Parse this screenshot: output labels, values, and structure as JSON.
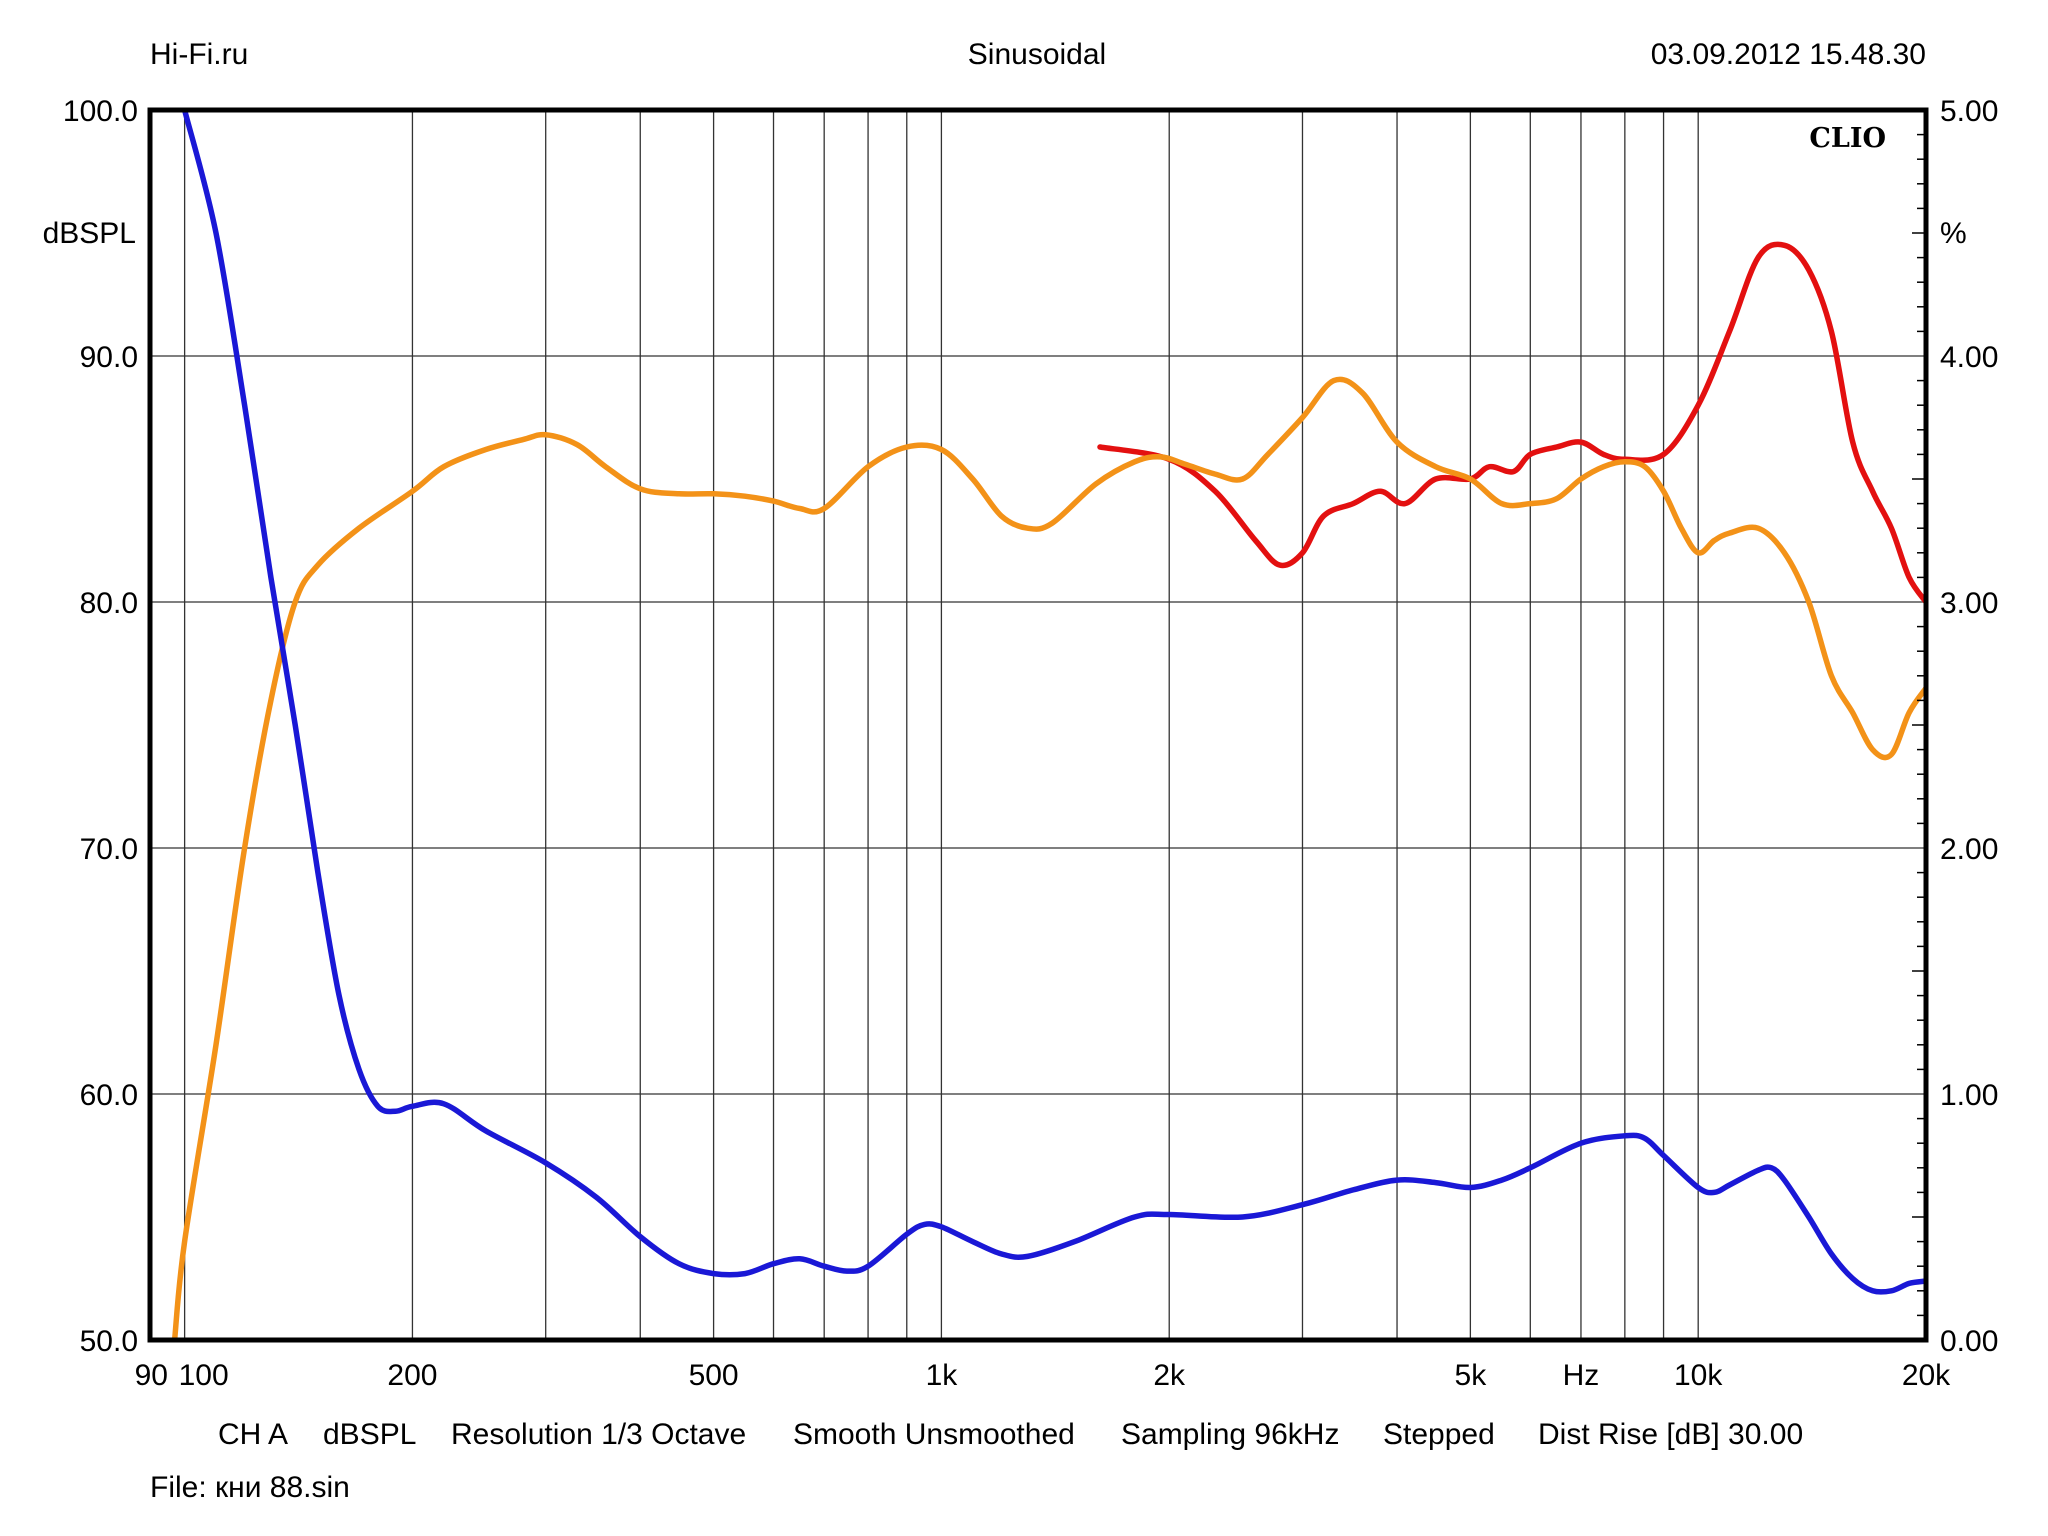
{
  "header": {
    "left": "Hi-Fi.ru",
    "center": "Sinusoidal",
    "right": "03.09.2012 15.48.30"
  },
  "brand": "CLIO",
  "footer": {
    "items": [
      "CH A",
      "dBSPL",
      "Resolution 1/3 Octave",
      "Smooth Unsmoothed",
      "Sampling 96kHz",
      "Stepped",
      "Dist Rise [dB] 30.00"
    ],
    "file": "File: кни 88.sin"
  },
  "chart_data": {
    "type": "line",
    "x_scale": "log",
    "xlim": [
      90,
      20000
    ],
    "ylim": [
      50,
      100
    ],
    "y2lim": [
      0,
      5
    ],
    "ylabel": "dBSPL",
    "y2label": "%",
    "xlabel": "Hz",
    "grid": true,
    "x_ticks": [
      {
        "value": 90,
        "label": "90"
      },
      {
        "value": 100,
        "label": "100"
      },
      {
        "value": 200,
        "label": "200"
      },
      {
        "value": 500,
        "label": "500"
      },
      {
        "value": 1000,
        "label": "1k"
      },
      {
        "value": 2000,
        "label": "2k"
      },
      {
        "value": 5000,
        "label": "5k"
      },
      {
        "value": 10000,
        "label": "10k"
      },
      {
        "value": 20000,
        "label": "20k"
      }
    ],
    "x_minor": [
      300,
      400,
      600,
      700,
      800,
      900,
      3000,
      4000,
      6000,
      7000,
      8000,
      9000
    ],
    "y_ticks": [
      {
        "value": 50,
        "label": "50.0"
      },
      {
        "value": 60,
        "label": "60.0"
      },
      {
        "value": 70,
        "label": "70.0"
      },
      {
        "value": 80,
        "label": "80.0"
      },
      {
        "value": 90,
        "label": "90.0"
      },
      {
        "value": 100,
        "label": "100.0"
      }
    ],
    "y2_ticks": [
      {
        "value": 0,
        "label": "0.00"
      },
      {
        "value": 1,
        "label": "1.00"
      },
      {
        "value": 2,
        "label": "2.00"
      },
      {
        "value": 3,
        "label": "3.00"
      },
      {
        "value": 4,
        "label": "4.00"
      },
      {
        "value": 5,
        "label": "5.00"
      }
    ],
    "series": [
      {
        "color": "#e31010",
        "axis": "left",
        "points": [
          [
            1620,
            86.3
          ],
          [
            2000,
            85.8
          ],
          [
            2300,
            84.5
          ],
          [
            2600,
            82.5
          ],
          [
            2800,
            81.5
          ],
          [
            3000,
            82.0
          ],
          [
            3200,
            83.5
          ],
          [
            3500,
            84.0
          ],
          [
            3800,
            84.5
          ],
          [
            4100,
            84.0
          ],
          [
            4500,
            85.0
          ],
          [
            5000,
            85.0
          ],
          [
            5300,
            85.5
          ],
          [
            5700,
            85.3
          ],
          [
            6000,
            86.0
          ],
          [
            6500,
            86.3
          ],
          [
            7000,
            86.5
          ],
          [
            7500,
            86.0
          ],
          [
            8000,
            85.8
          ],
          [
            9000,
            86.0
          ],
          [
            10000,
            88.0
          ],
          [
            11000,
            91.0
          ],
          [
            12000,
            94.0
          ],
          [
            13000,
            94.5
          ],
          [
            14000,
            93.5
          ],
          [
            15000,
            91.0
          ],
          [
            16000,
            86.5
          ],
          [
            17000,
            84.5
          ],
          [
            18000,
            83.0
          ],
          [
            19000,
            81.0
          ],
          [
            20000,
            80.0
          ]
        ]
      },
      {
        "color": "#f39218",
        "axis": "left",
        "points": [
          [
            97,
            50
          ],
          [
            100,
            54
          ],
          [
            110,
            62
          ],
          [
            120,
            70
          ],
          [
            130,
            76
          ],
          [
            140,
            80
          ],
          [
            150,
            81.5
          ],
          [
            170,
            83
          ],
          [
            200,
            84.5
          ],
          [
            220,
            85.5
          ],
          [
            250,
            86.2
          ],
          [
            280,
            86.6
          ],
          [
            300,
            86.8
          ],
          [
            330,
            86.4
          ],
          [
            360,
            85.5
          ],
          [
            400,
            84.6
          ],
          [
            450,
            84.4
          ],
          [
            500,
            84.4
          ],
          [
            550,
            84.3
          ],
          [
            600,
            84.1
          ],
          [
            650,
            83.8
          ],
          [
            700,
            83.8
          ],
          [
            800,
            85.5
          ],
          [
            900,
            86.3
          ],
          [
            1000,
            86.2
          ],
          [
            1100,
            85.0
          ],
          [
            1200,
            83.5
          ],
          [
            1300,
            83.0
          ],
          [
            1400,
            83.2
          ],
          [
            1600,
            84.8
          ],
          [
            1800,
            85.7
          ],
          [
            1950,
            85.9
          ],
          [
            2100,
            85.6
          ],
          [
            2300,
            85.2
          ],
          [
            2500,
            85.0
          ],
          [
            2700,
            86.0
          ],
          [
            3000,
            87.5
          ],
          [
            3300,
            89.0
          ],
          [
            3600,
            88.5
          ],
          [
            4000,
            86.5
          ],
          [
            4500,
            85.5
          ],
          [
            5000,
            85.0
          ],
          [
            5500,
            84.0
          ],
          [
            6000,
            84.0
          ],
          [
            6500,
            84.2
          ],
          [
            7000,
            85.0
          ],
          [
            7500,
            85.5
          ],
          [
            8000,
            85.7
          ],
          [
            8500,
            85.5
          ],
          [
            9000,
            84.5
          ],
          [
            9500,
            83.0
          ],
          [
            10000,
            82.0
          ],
          [
            10500,
            82.5
          ],
          [
            11000,
            82.8
          ],
          [
            12000,
            83.0
          ],
          [
            13000,
            82.0
          ],
          [
            14000,
            80.0
          ],
          [
            15000,
            77.0
          ],
          [
            16000,
            75.5
          ],
          [
            17000,
            74.0
          ],
          [
            18000,
            73.8
          ],
          [
            19000,
            75.5
          ],
          [
            20000,
            76.5
          ]
        ]
      },
      {
        "color": "#1a18d6",
        "axis": "right",
        "points": [
          [
            100,
            5.0
          ],
          [
            110,
            4.5
          ],
          [
            120,
            3.8
          ],
          [
            130,
            3.1
          ],
          [
            140,
            2.5
          ],
          [
            150,
            1.9
          ],
          [
            160,
            1.4
          ],
          [
            170,
            1.1
          ],
          [
            180,
            0.95
          ],
          [
            190,
            0.93
          ],
          [
            200,
            0.95
          ],
          [
            220,
            0.96
          ],
          [
            250,
            0.85
          ],
          [
            300,
            0.72
          ],
          [
            350,
            0.58
          ],
          [
            400,
            0.42
          ],
          [
            450,
            0.31
          ],
          [
            500,
            0.27
          ],
          [
            550,
            0.27
          ],
          [
            600,
            0.31
          ],
          [
            650,
            0.33
          ],
          [
            700,
            0.3
          ],
          [
            750,
            0.28
          ],
          [
            800,
            0.3
          ],
          [
            900,
            0.43
          ],
          [
            950,
            0.47
          ],
          [
            1000,
            0.46
          ],
          [
            1100,
            0.4
          ],
          [
            1200,
            0.35
          ],
          [
            1300,
            0.34
          ],
          [
            1500,
            0.4
          ],
          [
            1800,
            0.5
          ],
          [
            2000,
            0.51
          ],
          [
            2500,
            0.5
          ],
          [
            3000,
            0.55
          ],
          [
            3500,
            0.61
          ],
          [
            4000,
            0.65
          ],
          [
            4500,
            0.64
          ],
          [
            5000,
            0.62
          ],
          [
            5500,
            0.65
          ],
          [
            6000,
            0.7
          ],
          [
            7000,
            0.8
          ],
          [
            8000,
            0.83
          ],
          [
            8500,
            0.82
          ],
          [
            9000,
            0.75
          ],
          [
            10000,
            0.62
          ],
          [
            10500,
            0.6
          ],
          [
            11000,
            0.63
          ],
          [
            12000,
            0.69
          ],
          [
            12500,
            0.7
          ],
          [
            13000,
            0.65
          ],
          [
            14000,
            0.5
          ],
          [
            15000,
            0.35
          ],
          [
            16000,
            0.25
          ],
          [
            17000,
            0.2
          ],
          [
            18000,
            0.2
          ],
          [
            19000,
            0.23
          ],
          [
            20000,
            0.24
          ]
        ]
      }
    ]
  }
}
